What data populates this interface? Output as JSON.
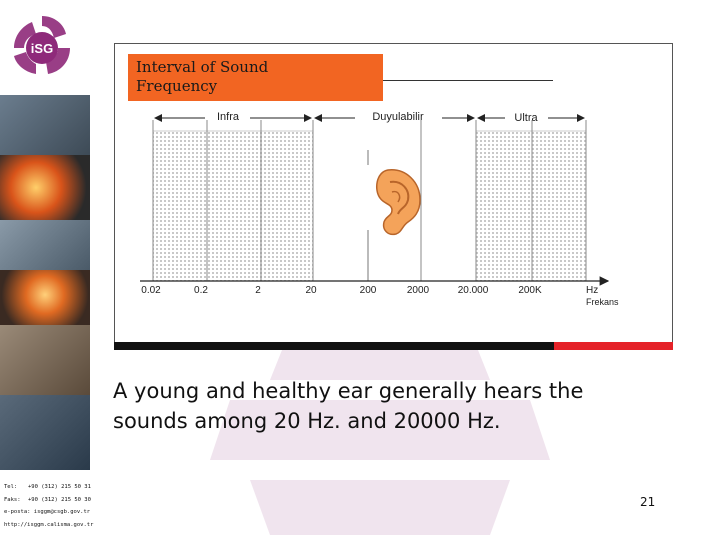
{
  "slide": {
    "title_line1": "Interval of Sound",
    "title_line2": "Frequency",
    "caption_line1": "A young and healthy ear generally hears the",
    "caption_line2": "sounds among 20 Hz. and  20000 Hz.",
    "page_number": "21"
  },
  "logo": {
    "text": "iSG",
    "icon": "isg-logo-icon"
  },
  "contact": {
    "tel_label": "Tel:",
    "tel_value": "+90 (312) 215 50 31",
    "fax_label": "Faks:",
    "fax_value": "+90 (312) 215 50 30",
    "email": "e-posta: isggm@csgb.gov.tr",
    "web": "http://isggm.calisma.gov.tr"
  },
  "diagram": {
    "range_labels": [
      "Infra",
      "Duyulabilir",
      "Ultra"
    ],
    "ticks": [
      "0.02",
      "0.2",
      "2",
      "20",
      "200",
      "2000",
      "20.000",
      "200K"
    ],
    "axis_unit": "Hz",
    "axis_name": "Frekans",
    "ear_icon": "ear-icon"
  },
  "colors": {
    "accent_orange": "#f26522",
    "accent_red": "#e52228",
    "bar_black": "#111111"
  }
}
